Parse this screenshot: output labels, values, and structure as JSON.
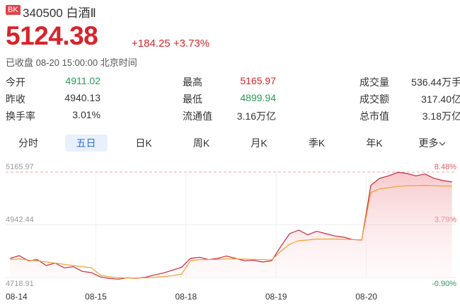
{
  "header": {
    "badge": "BK",
    "code": "340500",
    "name": "白酒Ⅱ",
    "price": "5124.38",
    "change": "+184.25",
    "change_pct": "+3.73%",
    "status": "已收盘 08-20 15:00:00 北京时间"
  },
  "stats": [
    [
      [
        "今开",
        "4911.02"
      ],
      [
        "最高",
        "5165.97"
      ],
      [
        "成交量",
        "536.44万手"
      ]
    ],
    [
      [
        "昨收",
        "4940.13"
      ],
      [
        "最低",
        "4899.94"
      ],
      [
        "成交额",
        "317.40亿"
      ]
    ],
    [
      [
        "换手率",
        "3.01%"
      ],
      [
        "流通值",
        "3.16万亿"
      ],
      [
        "总市值",
        "3.18万亿"
      ]
    ]
  ],
  "tabs": {
    "items": [
      "分时",
      "五日",
      "日K",
      "周K",
      "月K",
      "季K",
      "年K",
      "更多"
    ],
    "active": 1
  },
  "chart_data": {
    "type": "line",
    "categories": [
      "08-14",
      null,
      null,
      null,
      null,
      null,
      null,
      null,
      null,
      null,
      "08-15",
      null,
      null,
      null,
      null,
      null,
      null,
      null,
      null,
      null,
      "08-18",
      null,
      null,
      null,
      null,
      null,
      null,
      null,
      null,
      null,
      "08-19",
      null,
      null,
      null,
      null,
      null,
      null,
      null,
      null,
      null,
      "08-20",
      null,
      null,
      null,
      null,
      null,
      null,
      null,
      null,
      null
    ],
    "series": [
      {
        "color": "#c8283c",
        "values": [
          4800,
          4812,
          4790,
          4795,
          4770,
          4780,
          4760,
          4765,
          4745,
          4740,
          4722,
          4715,
          4712,
          4718,
          4716,
          4720,
          4730,
          4738,
          4750,
          4762,
          4800,
          4805,
          4795,
          4800,
          4810,
          4800,
          4790,
          4792,
          4785,
          4790,
          4850,
          4905,
          4920,
          4900,
          4915,
          4905,
          4895,
          4890,
          4880,
          4878,
          5110,
          5140,
          5150,
          5165,
          5160,
          5150,
          5158,
          5140,
          5130,
          5124.38
        ]
      },
      {
        "color": "#f0a030",
        "values": [
          4795,
          4798,
          4793,
          4790,
          4785,
          4780,
          4775,
          4770,
          4765,
          4760,
          4730,
          4722,
          4718,
          4717,
          4717,
          4718,
          4720,
          4723,
          4727,
          4733,
          4790,
          4795,
          4795,
          4796,
          4798,
          4798,
          4797,
          4796,
          4795,
          4794,
          4830,
          4860,
          4875,
          4878,
          4882,
          4882,
          4882,
          4881,
          4880,
          4879,
          5080,
          5095,
          5100,
          5105,
          5108,
          5108,
          5109,
          5108,
          5107,
          5106
        ]
      }
    ],
    "ylim": [
      4718.91,
      5165.97
    ],
    "yticks": [
      4718.91,
      4942.44,
      5165.97
    ],
    "y2lim": [
      -0.9,
      8.48
    ],
    "y2ticks": [
      {
        "value": -0.9,
        "label": "-0.90%"
      },
      {
        "value": 3.79,
        "label": "3.79%"
      },
      {
        "value": 8.48,
        "label": "8.48%"
      }
    ]
  }
}
